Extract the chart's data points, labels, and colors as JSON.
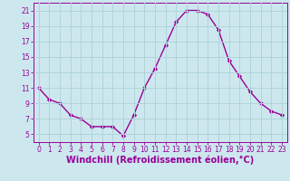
{
  "hours": [
    0,
    1,
    2,
    3,
    4,
    5,
    6,
    7,
    8,
    9,
    10,
    11,
    12,
    13,
    14,
    15,
    16,
    17,
    18,
    19,
    20,
    21,
    22,
    23
  ],
  "values": [
    11,
    9.5,
    9,
    7.5,
    7,
    6,
    6,
    6,
    4.8,
    7.5,
    11,
    13.5,
    16.5,
    19.5,
    21,
    21,
    20.5,
    18.5,
    14.5,
    12.5,
    10.5,
    9,
    8,
    7.5
  ],
  "line_color": "#990099",
  "marker": "D",
  "marker_size": 2.2,
  "bg_color": "#cce8ee",
  "grid_color": "#b0d4da",
  "xlabel": "Windchill (Refroidissement éolien,°C)",
  "xlabel_color": "#990099",
  "tick_color": "#990099",
  "ylim": [
    4,
    22
  ],
  "xlim": [
    -0.5,
    23.5
  ],
  "yticks": [
    5,
    7,
    9,
    11,
    13,
    15,
    17,
    19,
    21
  ],
  "xticks": [
    0,
    1,
    2,
    3,
    4,
    5,
    6,
    7,
    8,
    9,
    10,
    11,
    12,
    13,
    14,
    15,
    16,
    17,
    18,
    19,
    20,
    21,
    22,
    23
  ],
  "tick_fontsize": 5.5,
  "xlabel_fontsize": 7.0,
  "linewidth": 1.0
}
